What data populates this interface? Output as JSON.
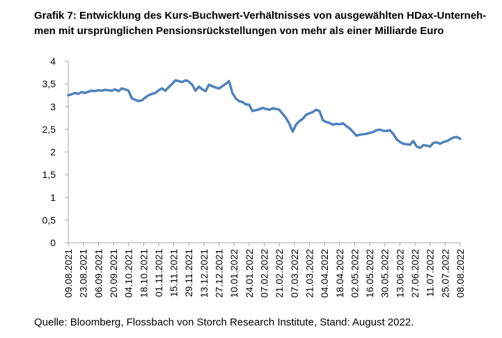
{
  "title": "Grafik 7: Entwicklung des Kurs-Buchwert-Verhältnisses von ausgewählten HDax-Unterneh-men mit ursprünglichen Pensionsrückstellungen von mehr als einer Milliarde Euro",
  "title_lines": [
    "Grafik 7: Entwicklung des Kurs-Buchwert-Verhältnisses von ausgewählten HDax-Unterneh-",
    "men mit ursprünglichen Pensionsrückstellungen von mehr als einer Milliarde Euro"
  ],
  "source": "Quelle: Bloomberg, Flossbach von Storch Research Institute, Stand: August 2022.",
  "colors": {
    "line": "#4F81BD",
    "axis": "#A6A6A6",
    "text": "#000000"
  },
  "chart_data": {
    "type": "line",
    "ylim": [
      0,
      4
    ],
    "y_ticks": [
      "0",
      "0,5",
      "1",
      "1,5",
      "2",
      "2,5",
      "3",
      "3,5",
      "4"
    ],
    "x_tick_labels": [
      "09.08.2021",
      "23.08.2021",
      "06.09.2021",
      "20.09.2021",
      "04.10.2021",
      "18.10.2021",
      "01.11.2021",
      "15.11.2021",
      "29.11.2021",
      "13.12.2021",
      "27.12.2021",
      "10.01.2022",
      "24.01.2022",
      "07.02.2022",
      "21.02.2022",
      "07.03.2022",
      "21.03.2022",
      "04.04.2022",
      "18.04.2022",
      "02.05.2022",
      "16.05.2022",
      "30.05.2022",
      "13.06.2022",
      "27.06.2022",
      "11.07.2022",
      "25.07.2022",
      "08.08.2022"
    ],
    "grid": false,
    "legend": "none",
    "series": [
      {
        "values": [
          3.25,
          3.27,
          3.3,
          3.28,
          3.32,
          3.3,
          3.33,
          3.35,
          3.34,
          3.36,
          3.35,
          3.37,
          3.36,
          3.35,
          3.38,
          3.34,
          3.4,
          3.38,
          3.35,
          3.18,
          3.15,
          3.12,
          3.14,
          3.2,
          3.25,
          3.28,
          3.3,
          3.36,
          3.4,
          3.35,
          3.43,
          3.5,
          3.58,
          3.56,
          3.54,
          3.58,
          3.55,
          3.48,
          3.35,
          3.44,
          3.38,
          3.34,
          3.48,
          3.45,
          3.42,
          3.4,
          3.45,
          3.5,
          3.56,
          3.3,
          3.18,
          3.12,
          3.1,
          3.05,
          3.04,
          2.9,
          2.92,
          2.94,
          2.97,
          2.95,
          2.93,
          2.96,
          2.95,
          2.93,
          2.84,
          2.75,
          2.62,
          2.45,
          2.6,
          2.68,
          2.73,
          2.82,
          2.85,
          2.88,
          2.93,
          2.9,
          2.7,
          2.66,
          2.64,
          2.6,
          2.62,
          2.61,
          2.63,
          2.57,
          2.52,
          2.44,
          2.36,
          2.38,
          2.39,
          2.4,
          2.42,
          2.44,
          2.48,
          2.49,
          2.47,
          2.46,
          2.48,
          2.4,
          2.28,
          2.22,
          2.18,
          2.17,
          2.16,
          2.24,
          2.12,
          2.09,
          2.15,
          2.14,
          2.12,
          2.2,
          2.21,
          2.18,
          2.22,
          2.24,
          2.28,
          2.32,
          2.33,
          2.29
        ]
      }
    ]
  }
}
